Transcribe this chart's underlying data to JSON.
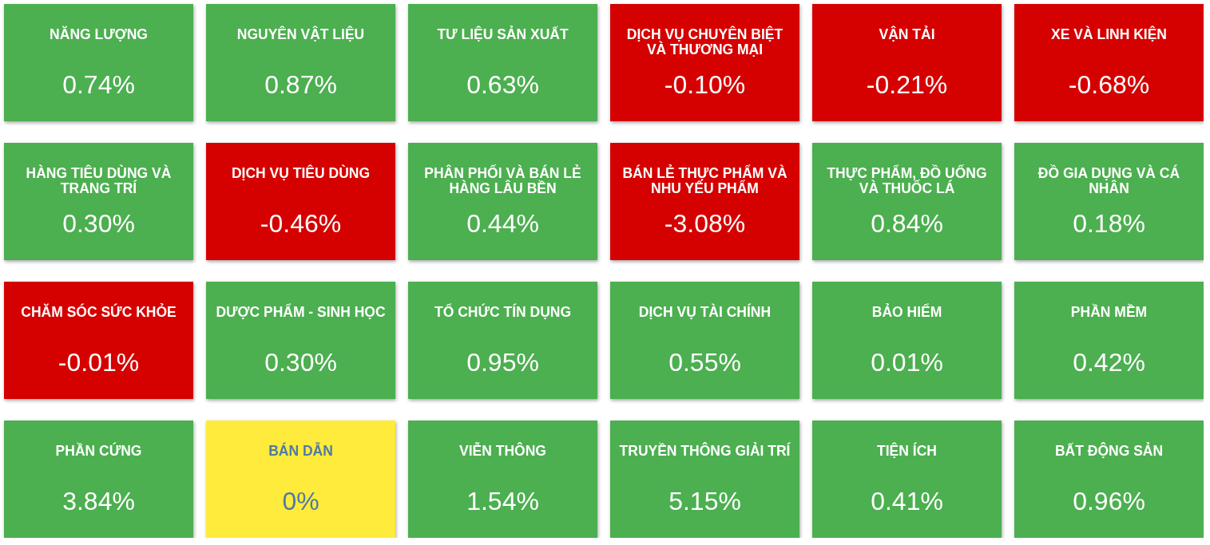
{
  "chart_data": {
    "type": "other",
    "categories": [
      "NĂNG LƯỢNG",
      "NGUYÊN VẬT LIỆU",
      "TƯ LIỆU SẢN XUẤT",
      "DỊCH VỤ CHUYÊN BIỆT VÀ THƯƠNG MẠI",
      "VẬN TẢI",
      "XE VÀ LINH KIỆN",
      "HÀNG TIÊU DÙNG VÀ TRANG TRÍ",
      "DỊCH VỤ TIÊU DÙNG",
      "PHÂN PHỐI VÀ BÁN LẺ HÀNG LÂU BỀN",
      "BÁN LẺ THỰC PHẨM VÀ NHU YẾU PHẨM",
      "THỰC PHẨM, ĐỒ UỐNG VÀ THUỐC LÁ",
      "ĐỒ GIA DỤNG VÀ CÁ NHÂN",
      "CHĂM SÓC SỨC KHỎE",
      "DƯỢC PHẨM - SINH HỌC",
      "TỔ CHỨC TÍN DỤNG",
      "DỊCH VỤ TÀI CHÍNH",
      "BẢO HIỂM",
      "PHẦN MỀM",
      "PHẦN CỨNG",
      "BÁN DẪN",
      "VIỄN THÔNG",
      "TRUYỀN THÔNG GIẢI TRÍ",
      "TIỆN ÍCH",
      "BẤT ĐỘNG SẢN"
    ],
    "values": [
      0.74,
      0.87,
      0.63,
      -0.1,
      -0.21,
      -0.68,
      0.3,
      -0.46,
      0.44,
      -3.08,
      0.84,
      0.18,
      -0.01,
      0.3,
      0.95,
      0.55,
      0.01,
      0.42,
      3.84,
      0,
      1.54,
      5.15,
      0.41,
      0.96
    ],
    "value_labels": [
      "0.74%",
      "0.87%",
      "0.63%",
      "-0.10%",
      "-0.21%",
      "-0.68%",
      "0.30%",
      "-0.46%",
      "0.44%",
      "-3.08%",
      "0.84%",
      "0.18%",
      "-0.01%",
      "0.30%",
      "0.95%",
      "0.55%",
      "0.01%",
      "0.42%",
      "3.84%",
      "0%",
      "1.54%",
      "5.15%",
      "0.41%",
      "0.96%"
    ],
    "colors": [
      "#4caf50",
      "#4caf50",
      "#4caf50",
      "#d50000",
      "#d50000",
      "#d50000",
      "#4caf50",
      "#d50000",
      "#4caf50",
      "#d50000",
      "#4caf50",
      "#4caf50",
      "#d50000",
      "#4caf50",
      "#4caf50",
      "#4caf50",
      "#4caf50",
      "#4caf50",
      "#4caf50",
      "#ffeb3b",
      "#4caf50",
      "#4caf50",
      "#4caf50",
      "#4caf50"
    ]
  }
}
